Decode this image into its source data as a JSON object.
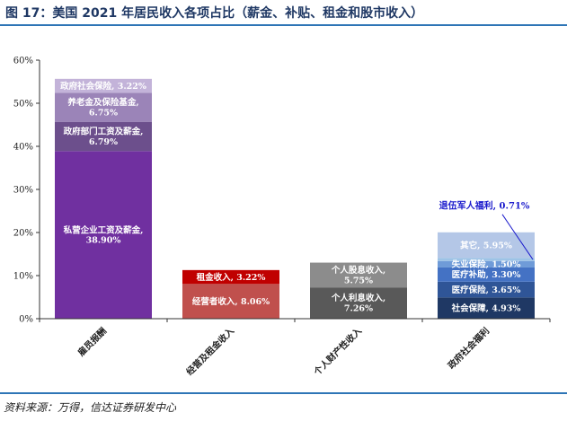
{
  "title": "图 17：美国 2021 年居民收入各项占比（薪金、补贴、租金和股市收入）",
  "source": "资料来源：万得，信达证券研发中心",
  "chart_data": {
    "type": "stacked-bar",
    "ylim": [
      0,
      60
    ],
    "yticks": [
      "0%",
      "10%",
      "20%",
      "30%",
      "40%",
      "50%",
      "60%"
    ],
    "categories": [
      "雇员报酬",
      "经营及租金收入",
      "个人财产性收入",
      "政府社会福利"
    ],
    "stacks": [
      [
        {
          "label": "私营企业工资及薪金, 38.90%",
          "value": 38.9,
          "color": "#7030a0"
        },
        {
          "label": "政府部门工资及薪金, 6.79%",
          "value": 6.79,
          "color": "#6c4f8c"
        },
        {
          "label": "养老金及保险基金, 6.75%",
          "value": 6.75,
          "color": "#9b84b8"
        },
        {
          "label": "政府社会保险, 3.22%",
          "value": 3.22,
          "color": "#c3b3d9"
        }
      ],
      [
        {
          "label": "经营者收入, 8.06%",
          "value": 8.06,
          "color": "#c0504d"
        },
        {
          "label": "租金收入, 3.22%",
          "value": 3.22,
          "color": "#c00000"
        }
      ],
      [
        {
          "label": "个人利息收入, 7.26%",
          "value": 7.26,
          "color": "#595959"
        },
        {
          "label": "个人股息收入, 5.75%",
          "value": 5.75,
          "color": "#8c8c8c"
        }
      ],
      [
        {
          "label": "社会保障, 4.93%",
          "value": 4.93,
          "color": "#1f3864"
        },
        {
          "label": "医疗保险, 3.65%",
          "value": 3.65,
          "color": "#2f5597"
        },
        {
          "label": "医疗补助, 3.30%",
          "value": 3.3,
          "color": "#4472c4"
        },
        {
          "label": "失业保险, 1.50%",
          "value": 1.5,
          "color": "#6f9bd8"
        },
        {
          "label": "退伍军人福利, 0.71%",
          "value": 0.71,
          "color": "#9dc3e6"
        },
        {
          "label": "其它, 5.95%",
          "value": 5.95,
          "color": "#b4c7e7"
        }
      ]
    ],
    "callout": {
      "text": "退伍军人福利, 0.71%",
      "stack": 3,
      "segment": 4
    }
  }
}
